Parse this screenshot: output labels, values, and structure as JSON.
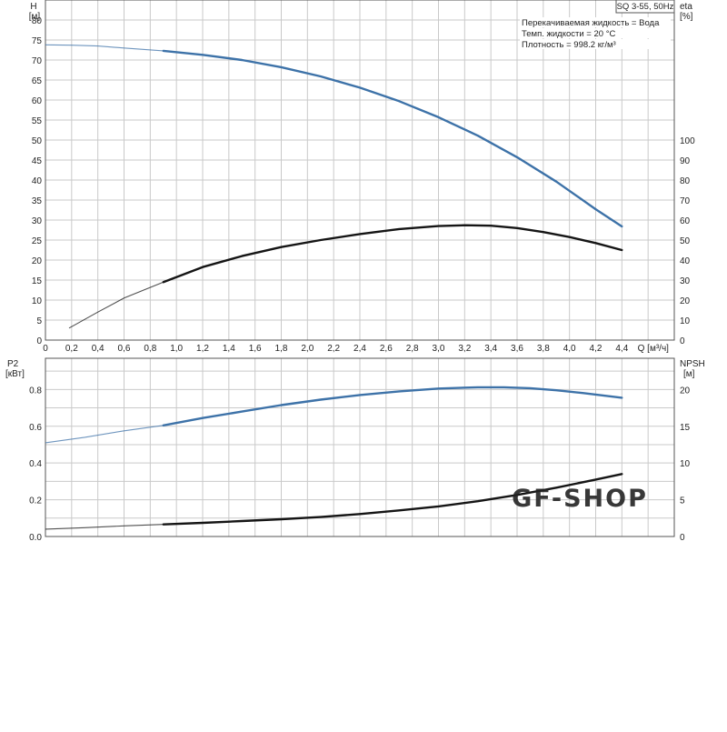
{
  "header": {
    "model": "SQ 3-55, 50Hz",
    "info_lines": [
      "Перекачиваемая жидкость = Вода",
      "Темп. жидкости = 20 °C",
      "Плотность = 998.2 кг/м³"
    ]
  },
  "watermark": "GF-SHOP",
  "colors": {
    "head": "#3d72a8",
    "eta": "#151515",
    "p2": "#3d72a8",
    "npsh": "#151515",
    "grid": "#c9c9c9",
    "frame": "#555555",
    "watermark": "#88acd0"
  },
  "chart_data": [
    {
      "type": "line",
      "panel": "top",
      "x_ticks": [
        "0",
        "0,2",
        "0,4",
        "0,6",
        "0,8",
        "1,0",
        "1,2",
        "1,4",
        "1,6",
        "1,8",
        "2,0",
        "2,2",
        "2,4",
        "2,6",
        "2,8",
        "3,0",
        "3,2",
        "3,4",
        "3,6",
        "3,8",
        "4,0",
        "4,2",
        "4,4"
      ],
      "xlim": [
        0,
        4.8
      ],
      "x_axis_label": "Q [м³/ч]",
      "y_left": {
        "label": "H",
        "unit": "[м]",
        "ylim": [
          0,
          85
        ],
        "ticks": [
          0,
          5,
          10,
          15,
          20,
          25,
          30,
          35,
          40,
          45,
          50,
          55,
          60,
          65,
          70,
          75,
          80
        ]
      },
      "y_right": {
        "label": "eta",
        "unit": "[%]",
        "ylim": [
          0,
          170
        ],
        "ticks": [
          0,
          10,
          20,
          30,
          40,
          50,
          60,
          70,
          80,
          90,
          100
        ]
      },
      "grid": true,
      "series": [
        {
          "key": "head",
          "axis": "left",
          "x": [
            0,
            0.2,
            0.4,
            0.6,
            0.9,
            1.2,
            1.5,
            1.8,
            2.1,
            2.4,
            2.7,
            3.0,
            3.3,
            3.6,
            3.9,
            4.2,
            4.4
          ],
          "y": [
            73.8,
            73.7,
            73.5,
            73.0,
            72.3,
            71.3,
            70.0,
            68.2,
            65.9,
            63.1,
            59.7,
            55.7,
            51.1,
            45.7,
            39.6,
            32.7,
            28.4
          ],
          "bold_from": 0.9
        },
        {
          "key": "eta",
          "axis": "right",
          "x": [
            0.18,
            0.4,
            0.6,
            0.9,
            1.2,
            1.5,
            1.8,
            2.1,
            2.4,
            2.7,
            3.0,
            3.2,
            3.4,
            3.6,
            3.8,
            4.0,
            4.2,
            4.4
          ],
          "y": [
            6,
            14,
            21,
            29,
            36.5,
            42,
            46.5,
            50,
            53,
            55.5,
            57,
            57.4,
            57.2,
            56,
            54,
            51.5,
            48.5,
            45
          ],
          "bold_from": 0.9
        }
      ]
    },
    {
      "type": "line",
      "panel": "bottom",
      "xlim": [
        0,
        4.8
      ],
      "y_left": {
        "label": "P2",
        "unit": "[кВт]",
        "ylim": [
          0,
          0.97
        ],
        "ticks": [
          "0.0",
          "0.2",
          "0.4",
          "0.6",
          "0.8"
        ]
      },
      "y_right": {
        "label": "NPSH",
        "unit": "[м]",
        "ylim": [
          0,
          24.25
        ],
        "ticks": [
          0,
          5,
          10,
          15,
          20
        ]
      },
      "grid": true,
      "series": [
        {
          "key": "p2",
          "axis": "left",
          "x": [
            0,
            0.3,
            0.6,
            0.9,
            1.2,
            1.5,
            1.8,
            2.1,
            2.4,
            2.7,
            3.0,
            3.3,
            3.5,
            3.7,
            3.9,
            4.1,
            4.4
          ],
          "y": [
            0.51,
            0.54,
            0.575,
            0.605,
            0.645,
            0.68,
            0.715,
            0.745,
            0.77,
            0.79,
            0.805,
            0.812,
            0.812,
            0.807,
            0.796,
            0.781,
            0.755
          ],
          "bold_from": 0.9
        },
        {
          "key": "npsh",
          "axis": "right",
          "x": [
            0,
            0.3,
            0.6,
            0.9,
            1.2,
            1.5,
            1.8,
            2.1,
            2.4,
            2.7,
            3.0,
            3.3,
            3.6,
            3.9,
            4.2,
            4.4
          ],
          "y": [
            1.0,
            1.2,
            1.45,
            1.65,
            1.85,
            2.1,
            2.35,
            2.65,
            3.05,
            3.55,
            4.1,
            4.8,
            5.65,
            6.65,
            7.75,
            8.5
          ],
          "bold_from": 0.9
        }
      ]
    }
  ]
}
